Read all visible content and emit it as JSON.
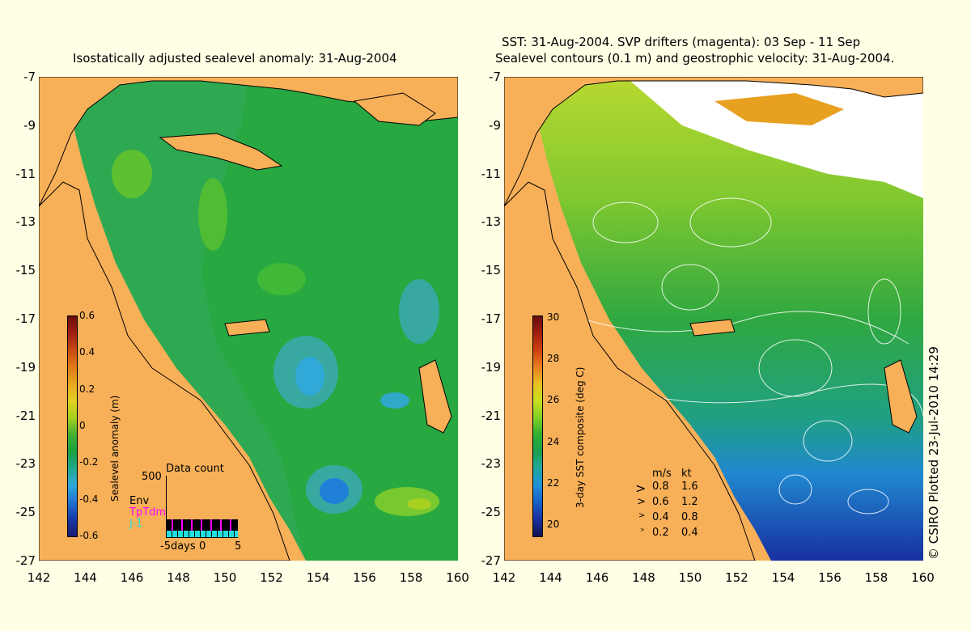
{
  "left_panel": {
    "title": "Isostatically adjusted sealevel anomaly: 31-Aug-2004",
    "colorbar": {
      "label": "Sealevel anomaly (m)",
      "ticks": [
        "0.6",
        "0.4",
        "0.2",
        "0",
        "-0.2",
        "-0.4",
        "-0.6"
      ],
      "colors": [
        "#6a0d0d",
        "#a01e0e",
        "#c84a12",
        "#e07a18",
        "#e8a820",
        "#e0d020",
        "#a8d020",
        "#40b030",
        "#18a040",
        "#20a890",
        "#30a8d8",
        "#2070d0",
        "#1838a8",
        "#1a1a70"
      ]
    },
    "data_count": {
      "title": "Data count",
      "y_max": "500",
      "series": [
        {
          "name": "Env",
          "color": "#000000"
        },
        {
          "name": "TpTdm",
          "color": "#ff00ff"
        },
        {
          "name": "J-1",
          "color": "#20e0e0"
        }
      ],
      "x_ticks": [
        "-5days",
        "0",
        "5"
      ]
    }
  },
  "right_panel": {
    "title_line1": "SST: 31-Aug-2004. SVP drifters (magenta): 03 Sep - 11 Sep",
    "title_line2": "Sealevel contours (0.1 m) and geostrophic velocity: 31-Aug-2004.",
    "colorbar": {
      "label": "3-day SST composite (deg C)",
      "ticks": [
        "30",
        "28",
        "26",
        "24",
        "22",
        "20"
      ],
      "colors": [
        "#6a0d0d",
        "#a01e0e",
        "#d04010",
        "#e88020",
        "#e8c020",
        "#c8e020",
        "#80d028",
        "#30b030",
        "#18a050",
        "#20a8a0",
        "#2090d8",
        "#1860c8",
        "#1a30a0",
        "#101050"
      ]
    },
    "velocity_legend": {
      "headers": [
        "m/s",
        "kt"
      ],
      "rows": [
        [
          "0.8",
          "1.6"
        ],
        [
          "0.6",
          "1.2"
        ],
        [
          "0.4",
          "0.8"
        ],
        [
          "0.2",
          "0.4"
        ]
      ]
    }
  },
  "axes": {
    "y_ticks": [
      "-7",
      "-9",
      "-11",
      "-13",
      "-15",
      "-17",
      "-19",
      "-21",
      "-23",
      "-25",
      "-27"
    ],
    "x_ticks": [
      "142",
      "144",
      "146",
      "148",
      "150",
      "152",
      "154",
      "156",
      "158",
      "160"
    ]
  },
  "credit": "© CSIRO Plotted 23-Jul-2010 14:29",
  "colors": {
    "background": "#ffffe6",
    "land": "#f8b058",
    "ocean_green": "#28a840"
  }
}
